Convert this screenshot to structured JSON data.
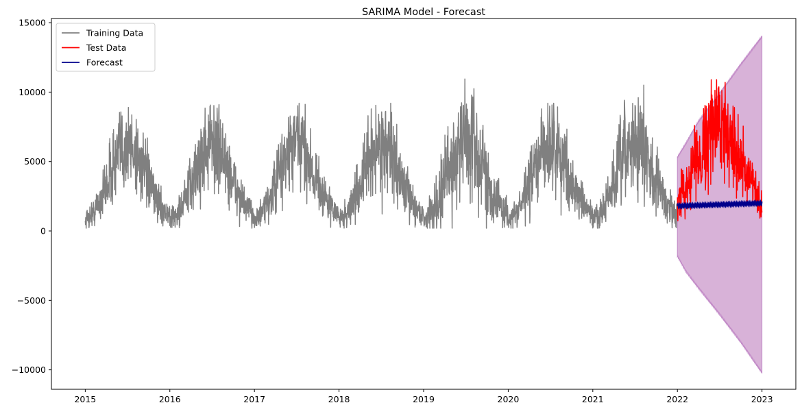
{
  "chart_data": {
    "type": "line",
    "title": "SARIMA Model - Forecast",
    "xlabel": "",
    "ylabel": "",
    "xlim": [
      2014.6,
      2023.4
    ],
    "ylim": [
      -11400,
      15300
    ],
    "xticks": [
      2015,
      2016,
      2017,
      2018,
      2019,
      2020,
      2021,
      2022,
      2023
    ],
    "xtick_labels": [
      "2015",
      "2016",
      "2017",
      "2018",
      "2019",
      "2020",
      "2021",
      "2022",
      "2023"
    ],
    "yticks": [
      -10000,
      -5000,
      0,
      5000,
      10000,
      15000
    ],
    "ytick_labels": [
      "−10000",
      "−5000",
      "0",
      "5000",
      "10000",
      "15000"
    ],
    "grid": false,
    "legend": {
      "position": "top-left",
      "entries": [
        {
          "label": "Training Data",
          "color": "#808080"
        },
        {
          "label": "Test Data",
          "color": "#ff0000"
        },
        {
          "label": "Forecast",
          "color": "#00008b"
        }
      ]
    },
    "series": [
      {
        "name": "Training Data",
        "color": "#808080",
        "x_range": [
          2015.0,
          2022.0
        ],
        "seasonal_profile": {
          "x_in_year": [
            0.0,
            0.1,
            0.2,
            0.3,
            0.4,
            0.5,
            0.6,
            0.7,
            0.8,
            0.9,
            1.0
          ],
          "typical_value": [
            800,
            1300,
            2500,
            4200,
            5600,
            6300,
            5700,
            4200,
            2800,
            1700,
            1100
          ],
          "spread": [
            500,
            700,
            1200,
            1800,
            2200,
            2400,
            2100,
            1700,
            1200,
            800,
            600
          ]
        },
        "peaks": [
          {
            "year": 2015,
            "max": 8900
          },
          {
            "year": 2016,
            "max": 9100
          },
          {
            "year": 2017,
            "max": 9200
          },
          {
            "year": 2018,
            "max": 9200
          },
          {
            "year": 2019,
            "max": 12300
          },
          {
            "year": 2020,
            "max": 9200
          },
          {
            "year": 2021,
            "max": 10500
          }
        ],
        "min_value": 200
      },
      {
        "name": "Test Data",
        "color": "#ff0000",
        "x_range": [
          2022.0,
          2023.0
        ],
        "typical_value": [
          2000,
          3200,
          4800,
          6000,
          7300,
          7900,
          7100,
          5800,
          4300,
          3000,
          1500
        ],
        "x_in_year": [
          0.0,
          0.1,
          0.2,
          0.3,
          0.4,
          0.5,
          0.6,
          0.7,
          0.8,
          0.9,
          1.0
        ],
        "max_value": 10900,
        "min_value": 100
      },
      {
        "name": "Forecast",
        "color": "#00008b",
        "x": [
          2022.0,
          2023.0
        ],
        "y": [
          1800,
          2000
        ],
        "weekly_amplitude": 150,
        "confidence_interval": {
          "color": "#d8b2d8",
          "edge_color": "#c28ac7",
          "upper": [
            [
              2022.0,
              5300
            ],
            [
              2022.1,
              6300
            ],
            [
              2022.25,
              7900
            ],
            [
              2022.5,
              9900
            ],
            [
              2022.75,
              12000
            ],
            [
              2023.0,
              14000
            ]
          ],
          "lower": [
            [
              2022.0,
              -1800
            ],
            [
              2022.1,
              -2900
            ],
            [
              2022.25,
              -4100
            ],
            [
              2022.5,
              -6000
            ],
            [
              2022.75,
              -8000
            ],
            [
              2023.0,
              -10200
            ]
          ]
        }
      }
    ]
  }
}
